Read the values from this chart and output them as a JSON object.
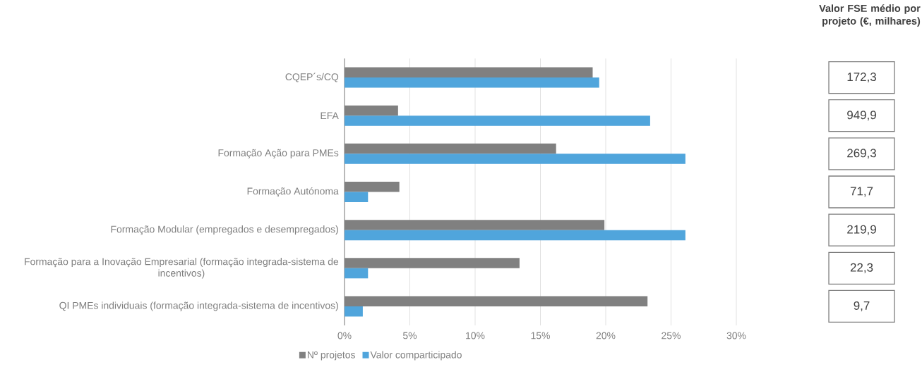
{
  "chart_data": [
    {
      "type": "bar",
      "orientation": "horizontal",
      "categories": [
        "CQEP´s/CQ",
        "EFA",
        "Formação Ação para PMEs",
        "Formação Autónoma",
        "Formação Modular (empregados e desempregados)",
        "Formação para a Inovação Empresarial (formação integrada-sistema de incentivos)",
        "QI PMEs individuais (formação integrada-sistema de incentivos)"
      ],
      "series": [
        {
          "name": "Nº projetos",
          "color": "#808080",
          "values": [
            19.0,
            4.1,
            16.2,
            4.2,
            19.9,
            13.4,
            23.2
          ]
        },
        {
          "name": "Valor comparticipado",
          "color": "#50a5dc",
          "values": [
            19.5,
            23.4,
            26.1,
            1.8,
            26.1,
            1.8,
            1.4
          ]
        }
      ],
      "xlim": [
        0,
        30
      ],
      "xticks": [
        {
          "value": 0,
          "label": "0%"
        },
        {
          "value": 5,
          "label": "5%"
        },
        {
          "value": 10,
          "label": "10%"
        },
        {
          "value": 15,
          "label": "15%"
        },
        {
          "value": 20,
          "label": "20%"
        },
        {
          "value": 25,
          "label": "25%"
        },
        {
          "value": 30,
          "label": "30%"
        }
      ],
      "grid": "x",
      "legend": "bottom"
    },
    {
      "type": "other",
      "title": "Valor FSE médio por projeto (€, milhares)",
      "annotations": [
        "172,3",
        "949,9",
        "269,3",
        "71,7",
        "219,9",
        "22,3",
        "9,7"
      ]
    }
  ]
}
